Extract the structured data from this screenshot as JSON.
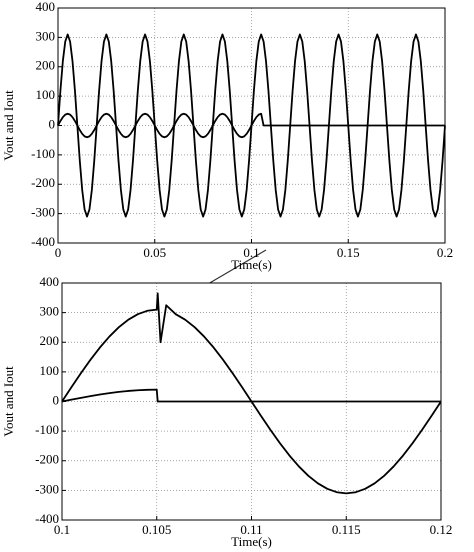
{
  "chart_data": [
    {
      "type": "line",
      "xlabel": "Time(s)",
      "ylabel": "Vout and Iout",
      "grid": true,
      "xlim": [
        0,
        0.2
      ],
      "xticks": [
        0,
        0.05,
        0.1,
        0.15,
        0.2
      ],
      "ylim": [
        -400,
        400
      ],
      "yticks": [
        -400,
        -300,
        -200,
        -100,
        0,
        100,
        200,
        300,
        400
      ],
      "x": [
        0,
        0.00125,
        0.0025,
        0.00375,
        0.005,
        0.00625,
        0.0075,
        0.00875,
        0.01,
        0.01125,
        0.0125,
        0.01375,
        0.015,
        0.01625,
        0.0175,
        0.01875,
        0.02,
        0.02125,
        0.0225,
        0.02375,
        0.025,
        0.02625,
        0.0275,
        0.02875,
        0.03,
        0.03125,
        0.0325,
        0.03375,
        0.035,
        0.03625,
        0.0375,
        0.03875,
        0.04,
        0.04125,
        0.0425,
        0.04375,
        0.045,
        0.04625,
        0.0475,
        0.04875,
        0.05,
        0.05125,
        0.0525,
        0.05375,
        0.055,
        0.05625,
        0.0575,
        0.05875,
        0.06,
        0.06125,
        0.0625,
        0.06375,
        0.065,
        0.06625,
        0.0675,
        0.06875,
        0.07,
        0.07125,
        0.0725,
        0.07375,
        0.075,
        0.07625,
        0.0775,
        0.07875,
        0.08,
        0.08125,
        0.0825,
        0.08375,
        0.085,
        0.08625,
        0.0875,
        0.08875,
        0.09,
        0.09125,
        0.0925,
        0.09375,
        0.095,
        0.09625,
        0.0975,
        0.09875,
        0.1,
        0.10125,
        0.1025,
        0.10375,
        0.105,
        0.10625,
        0.1075,
        0.10875,
        0.11,
        0.11125,
        0.1125,
        0.11375,
        0.115,
        0.11625,
        0.1175,
        0.11875,
        0.12,
        0.12125,
        0.1225,
        0.12375,
        0.125,
        0.12625,
        0.1275,
        0.12875,
        0.13,
        0.13125,
        0.1325,
        0.13375,
        0.135,
        0.13625,
        0.1375,
        0.13875,
        0.14,
        0.14125,
        0.1425,
        0.14375,
        0.145,
        0.14625,
        0.1475,
        0.14875,
        0.15,
        0.15125,
        0.1525,
        0.15375,
        0.155,
        0.15625,
        0.1575,
        0.15875,
        0.16,
        0.16125,
        0.1625,
        0.16375,
        0.165,
        0.16625,
        0.1675,
        0.16875,
        0.17,
        0.17125,
        0.1725,
        0.17375,
        0.175,
        0.17625,
        0.1775,
        0.17875,
        0.18,
        0.18125,
        0.1825,
        0.18375,
        0.185,
        0.18625,
        0.1875,
        0.18875,
        0.19,
        0.19125,
        0.1925,
        0.19375,
        0.195,
        0.19625,
        0.1975,
        0.19875,
        0.2
      ],
      "series": [
        {
          "color": "#000000",
          "values": [
            0,
            119,
            219,
            286,
            310,
            286,
            219,
            119,
            0,
            -119,
            -219,
            -286,
            -310,
            -286,
            -219,
            -119,
            0,
            119,
            219,
            286,
            310,
            286,
            219,
            119,
            0,
            -119,
            -219,
            -286,
            -310,
            -286,
            -219,
            -119,
            0,
            119,
            219,
            286,
            310,
            286,
            219,
            119,
            0,
            -119,
            -219,
            -286,
            -310,
            -286,
            -219,
            -119,
            0,
            119,
            219,
            286,
            310,
            286,
            219,
            119,
            0,
            -119,
            -219,
            -286,
            -310,
            -286,
            -219,
            -119,
            0,
            119,
            219,
            286,
            310,
            286,
            219,
            119,
            0,
            -119,
            -219,
            -286,
            -310,
            -286,
            -219,
            -119,
            0,
            119,
            219,
            286,
            310,
            286,
            219,
            119,
            0,
            -119,
            -219,
            -286,
            -310,
            -286,
            -219,
            -119,
            0,
            119,
            219,
            286,
            310,
            286,
            219,
            119,
            0,
            -119,
            -219,
            -286,
            -310,
            -286,
            -219,
            -119,
            0,
            119,
            219,
            286,
            310,
            286,
            219,
            119,
            0,
            -119,
            -219,
            -286,
            -310,
            -286,
            -219,
            -119,
            0,
            119,
            219,
            286,
            310,
            286,
            219,
            119,
            0,
            -119,
            -219,
            -286,
            -310,
            -286,
            -219,
            -119,
            0,
            119,
            219,
            286,
            310,
            286,
            219,
            119,
            0,
            -119,
            -219,
            -286,
            -310,
            -286,
            -219,
            -119,
            0
          ]
        },
        {
          "color": "#000000",
          "values": [
            0,
            15.3,
            28.3,
            37,
            40,
            37,
            28.3,
            15.3,
            0,
            -15.3,
            -28.3,
            -37,
            -40,
            -37,
            -28.3,
            -15.3,
            0,
            15.3,
            28.3,
            37,
            40,
            37,
            28.3,
            15.3,
            0,
            -15.3,
            -28.3,
            -37,
            -40,
            -37,
            -28.3,
            -15.3,
            0,
            15.3,
            28.3,
            37,
            40,
            37,
            28.3,
            15.3,
            0,
            -15.3,
            -28.3,
            -37,
            -40,
            -37,
            -28.3,
            -15.3,
            0,
            15.3,
            28.3,
            37,
            40,
            37,
            28.3,
            15.3,
            0,
            -15.3,
            -28.3,
            -37,
            -40,
            -37,
            -28.3,
            -15.3,
            0,
            15.3,
            28.3,
            37,
            40,
            37,
            28.3,
            15.3,
            0,
            -15.3,
            -28.3,
            -37,
            -40,
            -37,
            -28.3,
            -15.3,
            0,
            15.3,
            28.3,
            37,
            40,
            0,
            0,
            0,
            0,
            0,
            0,
            0,
            0,
            0,
            0,
            0,
            0,
            0,
            0,
            0,
            0,
            0,
            0,
            0,
            0,
            0,
            0,
            0,
            0,
            0,
            0,
            0,
            0,
            0,
            0,
            0,
            0,
            0,
            0,
            0,
            0,
            0,
            0,
            0,
            0,
            0,
            0,
            0,
            0,
            0,
            0,
            0,
            0,
            0,
            0,
            0,
            0,
            0,
            0,
            0,
            0,
            0,
            0,
            0,
            0,
            0,
            0,
            0,
            0,
            0,
            0,
            0,
            0,
            0,
            0,
            0,
            0,
            0,
            0,
            0,
            0
          ]
        }
      ]
    },
    {
      "type": "line",
      "xlabel": "Time(s)",
      "ylabel": "Vout and Iout",
      "grid": true,
      "xlim": [
        0.1,
        0.12
      ],
      "xticks": [
        0.1,
        0.105,
        0.11,
        0.115,
        0.12
      ],
      "ylim": [
        -400,
        400
      ],
      "yticks": [
        -400,
        -300,
        -200,
        -100,
        0,
        100,
        200,
        300,
        400
      ],
      "x": [
        0.1,
        0.1005,
        0.101,
        0.1015,
        0.102,
        0.1025,
        0.103,
        0.1035,
        0.104,
        0.1045,
        0.105,
        0.10505,
        0.1052,
        0.1055,
        0.106,
        0.1065,
        0.107,
        0.1075,
        0.108,
        0.1085,
        0.109,
        0.1095,
        0.11,
        0.1105,
        0.111,
        0.1115,
        0.112,
        0.1125,
        0.113,
        0.1135,
        0.114,
        0.1145,
        0.115,
        0.1155,
        0.116,
        0.1165,
        0.117,
        0.1175,
        0.118,
        0.1185,
        0.119,
        0.1195,
        0.12
      ],
      "series": [
        {
          "color": "#000000",
          "values": [
            0,
            48.5,
            95.8,
            140.7,
            182.2,
            219.2,
            250.8,
            276.2,
            294.8,
            306.2,
            310,
            365,
            200,
            325,
            294.8,
            276.2,
            250.8,
            219.2,
            182.2,
            140.7,
            95.8,
            48.5,
            0,
            -48.5,
            -95.8,
            -140.7,
            -182.2,
            -219.2,
            -250.8,
            -276.2,
            -294.8,
            -306.2,
            -310,
            -306.2,
            -294.8,
            -276.2,
            -250.8,
            -219.2,
            -182.2,
            -140.7,
            -95.8,
            -48.5,
            0
          ]
        },
        {
          "color": "#000000",
          "values": [
            0,
            6.3,
            12.4,
            18.2,
            23.5,
            28.3,
            32.4,
            35.6,
            38,
            39.5,
            40,
            0,
            0,
            0,
            0,
            0,
            0,
            0,
            0,
            0,
            0,
            0,
            0,
            0,
            0,
            0,
            0,
            0,
            0,
            0,
            0,
            0,
            0,
            0,
            0,
            0,
            0,
            0,
            0,
            0,
            0,
            0,
            0
          ]
        }
      ]
    }
  ]
}
